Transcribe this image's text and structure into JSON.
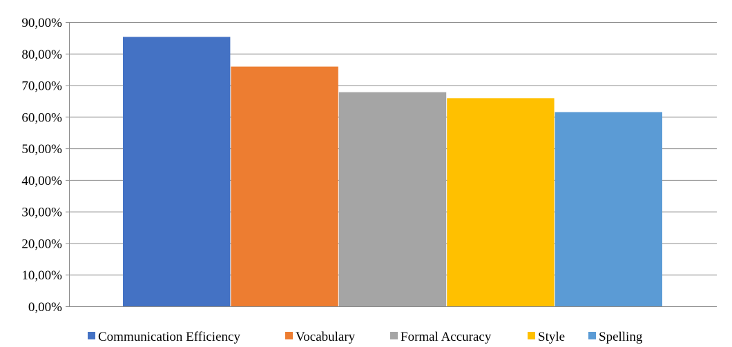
{
  "chart_data": {
    "type": "bar",
    "title": "",
    "xlabel": "",
    "ylabel": "",
    "ylim": [
      0,
      90
    ],
    "y_tick_values": [
      0,
      10,
      20,
      30,
      40,
      50,
      60,
      70,
      80,
      90
    ],
    "y_tick_labels": [
      "0,00%",
      "10,00%",
      "20,00%",
      "30,00%",
      "40,00%",
      "50,00%",
      "60,00%",
      "70,00%",
      "80,00%",
      "90,00%"
    ],
    "grid": true,
    "legend_position": "bottom",
    "series": [
      {
        "name": "Communication Efficiency",
        "value": 85.3,
        "color": "#4472c4"
      },
      {
        "name": "Vocabulary",
        "value": 75.9,
        "color": "#ed7d31"
      },
      {
        "name": "Formal Accuracy",
        "value": 67.8,
        "color": "#a5a5a5"
      },
      {
        "name": "Style",
        "value": 65.9,
        "color": "#ffc000"
      },
      {
        "name": "Spelling",
        "value": 61.5,
        "color": "#5b9bd5"
      }
    ]
  }
}
